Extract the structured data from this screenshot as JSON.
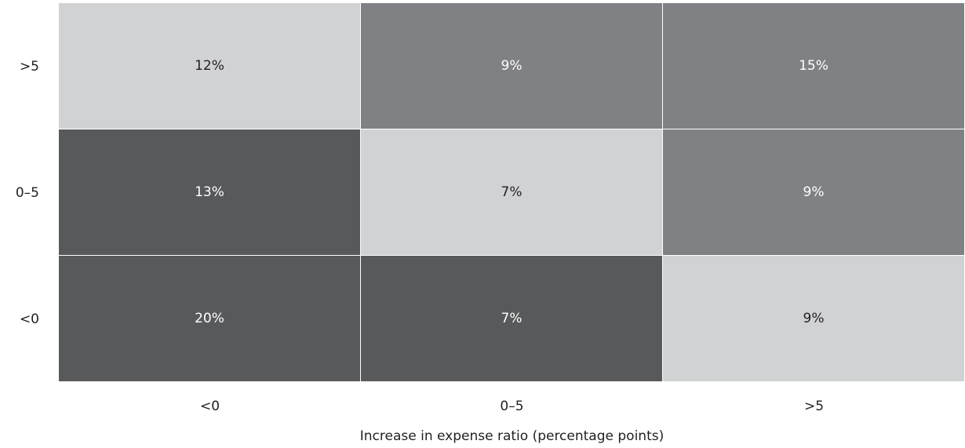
{
  "chart_data": {
    "type": "heatmap",
    "title": "",
    "xlabel": "Increase in expense ratio (percentage points)",
    "ylabel": "",
    "x_categories": [
      "<0",
      "0–5",
      ">5"
    ],
    "y_categories": [
      ">5",
      "0–5",
      "<0"
    ],
    "values": [
      [
        "12%",
        "9%",
        "15%"
      ],
      [
        "13%",
        "7%",
        "9%"
      ],
      [
        "20%",
        "7%",
        "9%"
      ]
    ],
    "shades": [
      [
        "light",
        "medium",
        "medium"
      ],
      [
        "dark",
        "light",
        "medium"
      ],
      [
        "dark",
        "dark",
        "light"
      ]
    ],
    "colors": {
      "light": "#d1d2d4",
      "medium": "#808184",
      "dark": "#58595b",
      "text_on_light": "#231f20",
      "text_on_dark": "#ffffff"
    },
    "grid": true,
    "legend": "none"
  }
}
